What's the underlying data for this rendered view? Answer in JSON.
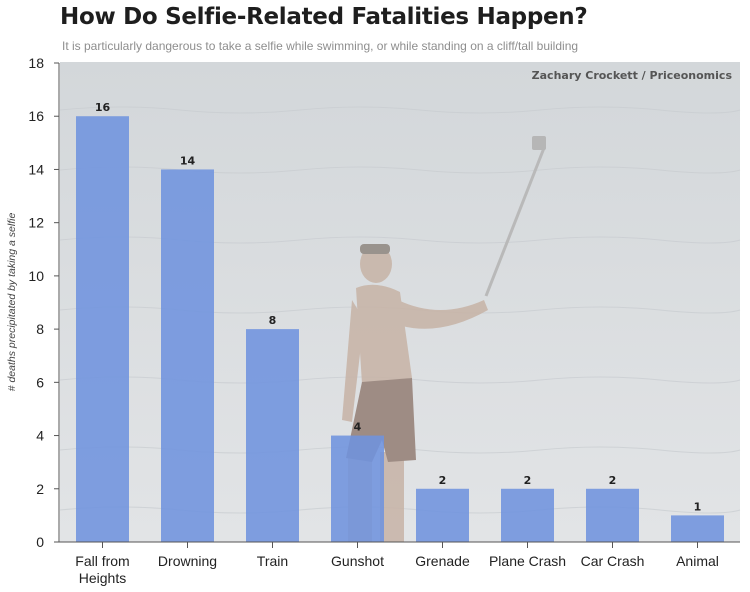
{
  "header": {
    "title": "How Do Selfie-Related Fatalities Happen?",
    "subtitle": "It is particularly dangerous to take a selfie while swimming, or while standing on a cliff/tall building",
    "credit": "Zachary Crockett / Priceonomics"
  },
  "colors": {
    "bar": "#6f93de",
    "sea": "#d9dde0",
    "grid": "#ffffff",
    "axis": "#555555"
  },
  "chart_data": {
    "type": "bar",
    "title": "How Do Selfie-Related Fatalities Happen?",
    "subtitle": "It is particularly dangerous to take a selfie while swimming, or while standing on a cliff/tall building",
    "xlabel": "",
    "ylabel": "# deaths precipitated by taking a selfie",
    "categories": [
      "Fall from Heights",
      "Drowning",
      "Train",
      "Gunshot",
      "Grenade",
      "Plane Crash",
      "Car Crash",
      "Animal"
    ],
    "category_lines": [
      [
        "Fall from",
        "Heights"
      ],
      [
        "Drowning"
      ],
      [
        "Train"
      ],
      [
        "Gunshot"
      ],
      [
        "Grenade"
      ],
      [
        "Plane Crash"
      ],
      [
        "Car Crash"
      ],
      [
        "Animal"
      ]
    ],
    "values": [
      16,
      14,
      8,
      4,
      2,
      2,
      2,
      1
    ],
    "ylim": [
      0,
      18
    ],
    "yticks": [
      0,
      2,
      4,
      6,
      8,
      10,
      12,
      14,
      16,
      18
    ],
    "grid": false,
    "data_labels": true
  }
}
